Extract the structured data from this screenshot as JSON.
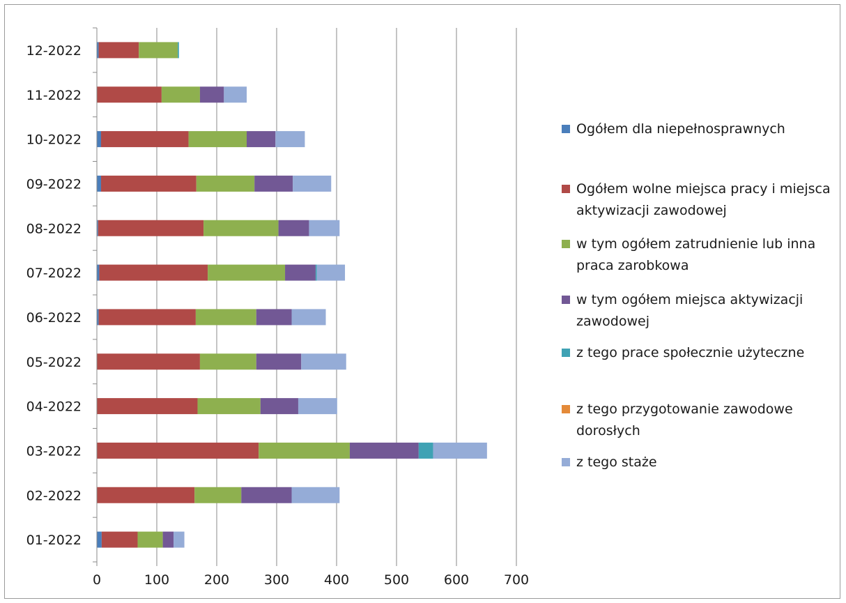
{
  "chart_data": {
    "type": "bar",
    "orientation": "horizontal",
    "stacked": true,
    "title": "",
    "xlabel": "",
    "ylabel": "",
    "xlim": [
      0,
      700
    ],
    "x_ticks": [
      "0",
      "100",
      "200",
      "300",
      "400",
      "500",
      "600",
      "700"
    ],
    "categories": [
      "01-2022",
      "02-2022",
      "03-2022",
      "04-2022",
      "05-2022",
      "06-2022",
      "07-2022",
      "08-2022",
      "09-2022",
      "10-2022",
      "11-2022",
      "12-2022"
    ],
    "grid": "vertical",
    "legend_position": "right",
    "series": [
      {
        "name": "Ogółem dla niepełnosprawnych",
        "color": "#4a7ebb",
        "values": [
          8,
          0,
          0,
          0,
          0,
          3,
          4,
          2,
          7,
          7,
          0,
          3
        ]
      },
      {
        "name": "Ogółem wolne miejsca pracy i miejsca aktywizacji zawodowej",
        "color": "#b04a47",
        "values": [
          60,
          163,
          270,
          168,
          172,
          162,
          181,
          176,
          159,
          146,
          108,
          67
        ]
      },
      {
        "name": "w tym ogółem zatrudnienie lub inna praca zarobkowa",
        "color": "#8eb04f",
        "values": [
          42,
          78,
          152,
          105,
          94,
          101,
          129,
          125,
          97,
          97,
          64,
          65
        ]
      },
      {
        "name": "w tym ogółem miejsca aktywizacji zawodowej",
        "color": "#725895",
        "values": [
          18,
          84,
          115,
          63,
          75,
          59,
          51,
          51,
          64,
          48,
          40,
          0
        ]
      },
      {
        "name": "z tego prace społecznie użyteczne",
        "color": "#3fa2b4",
        "values": [
          0,
          0,
          24,
          0,
          0,
          0,
          2,
          0,
          0,
          0,
          0,
          2
        ]
      },
      {
        "name": "z tego przygotowanie zawodowe dorosłych",
        "color": "#e48a39",
        "values": [
          0,
          0,
          0,
          0,
          0,
          0,
          0,
          0,
          0,
          0,
          0,
          0
        ]
      },
      {
        "name": "z tego staże",
        "color": "#95acd7",
        "values": [
          18,
          80,
          90,
          65,
          75,
          57,
          47,
          51,
          64,
          49,
          38,
          0
        ]
      }
    ]
  }
}
